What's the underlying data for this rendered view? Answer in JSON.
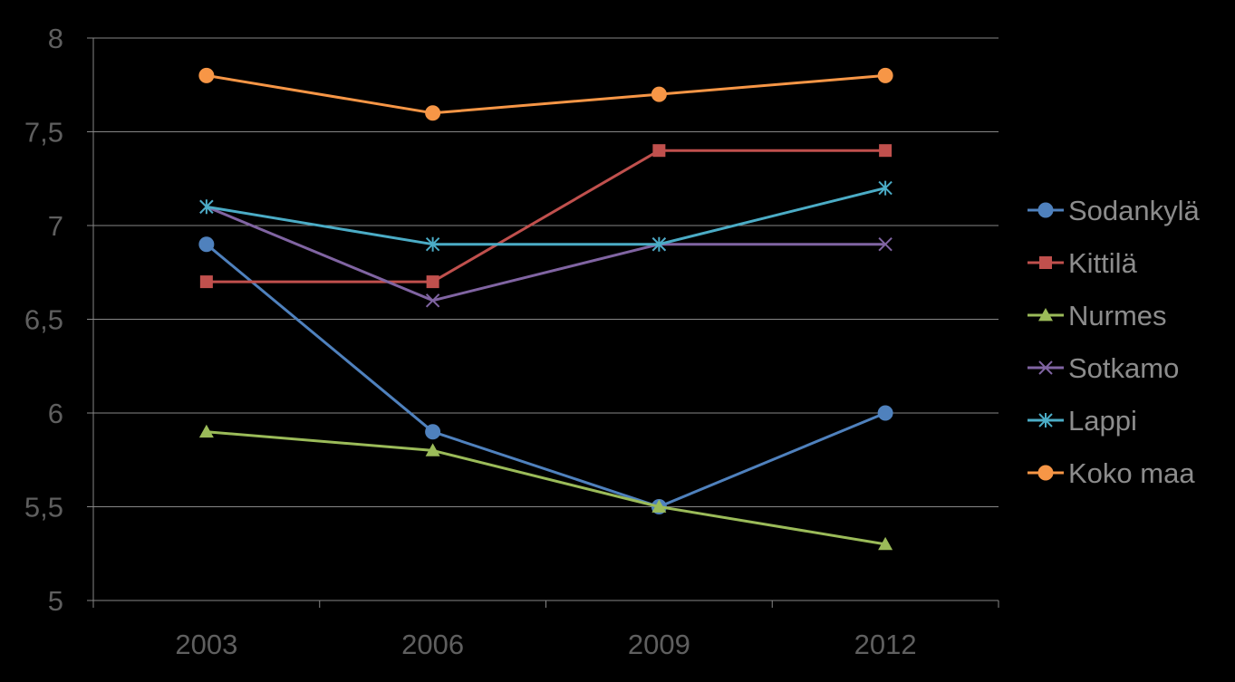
{
  "chart_data": {
    "type": "line",
    "title": "",
    "xlabel": "",
    "ylabel": "",
    "categories": [
      "2003",
      "2006",
      "2009",
      "2012"
    ],
    "ylim": [
      5,
      8
    ],
    "ytick_labels": [
      "5",
      "5,5",
      "6",
      "6,5",
      "7",
      "7,5",
      "8"
    ],
    "ytick_values": [
      5,
      5.5,
      6,
      6.5,
      7,
      7.5,
      8
    ],
    "grid": "horizontal",
    "legend_position": "right",
    "series": [
      {
        "name": "Sodankylä",
        "values": [
          6.9,
          5.9,
          5.5,
          6.0
        ],
        "color": "#4f81bd",
        "marker": "circle"
      },
      {
        "name": "Kittilä",
        "values": [
          6.7,
          6.7,
          7.4,
          7.4
        ],
        "color": "#c0504d",
        "marker": "square"
      },
      {
        "name": "Nurmes",
        "values": [
          5.9,
          5.8,
          5.5,
          5.3
        ],
        "color": "#9bbb59",
        "marker": "triangle"
      },
      {
        "name": "Sotkamo",
        "values": [
          7.1,
          6.6,
          6.9,
          6.9
        ],
        "color": "#8064a2",
        "marker": "x"
      },
      {
        "name": "Lappi",
        "values": [
          7.1,
          6.9,
          6.9,
          7.2
        ],
        "color": "#4bacc6",
        "marker": "star"
      },
      {
        "name": "Koko maa",
        "values": [
          7.8,
          7.6,
          7.7,
          7.8
        ],
        "color": "#f79646",
        "marker": "circle"
      }
    ]
  }
}
